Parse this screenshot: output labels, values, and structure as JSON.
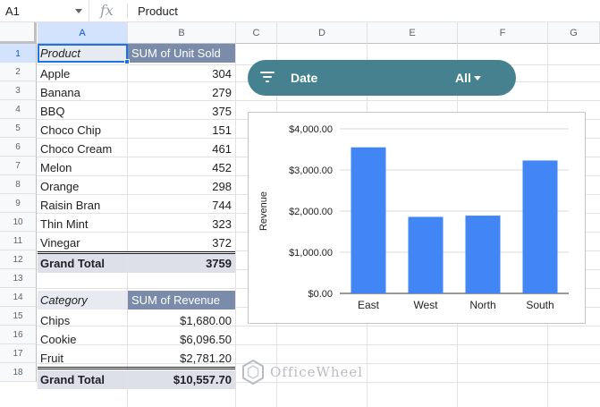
{
  "formula_bar": {
    "name_box": "A1",
    "fx": "fx",
    "content": "Product"
  },
  "columns": [
    "A",
    "B",
    "C",
    "D",
    "E",
    "F",
    "G"
  ],
  "rows": [
    "1",
    "2",
    "3",
    "4",
    "5",
    "6",
    "7",
    "8",
    "9",
    "10",
    "11",
    "12",
    "13",
    "14",
    "15",
    "16",
    "17",
    "18"
  ],
  "pivot1": {
    "header_a": "Product",
    "header_b": "SUM of Unit Sold",
    "rows": [
      {
        "label": "Apple",
        "value": "304"
      },
      {
        "label": "Banana",
        "value": "279"
      },
      {
        "label": "BBQ",
        "value": "375"
      },
      {
        "label": "Choco Chip",
        "value": "151"
      },
      {
        "label": "Choco Cream",
        "value": "461"
      },
      {
        "label": "Melon",
        "value": "452"
      },
      {
        "label": "Orange",
        "value": "298"
      },
      {
        "label": "Raisin Bran",
        "value": "744"
      },
      {
        "label": "Thin Mint",
        "value": "323"
      },
      {
        "label": "Vinegar",
        "value": "372"
      }
    ],
    "total_label": "Grand Total",
    "total_value": "3759"
  },
  "pivot2": {
    "header_a": "Category",
    "header_b": "SUM of Revenue",
    "rows": [
      {
        "label": "Chips",
        "value": "$1,680.00"
      },
      {
        "label": "Cookie",
        "value": "$6,096.50"
      },
      {
        "label": "Fruit",
        "value": "$2,781.20"
      }
    ],
    "total_label": "Grand Total",
    "total_value": "$10,557.70"
  },
  "filter": {
    "label": "Date",
    "value": "All",
    "icon": "filter-icon"
  },
  "chart_data": {
    "type": "bar",
    "categories": [
      "East",
      "West",
      "North",
      "South"
    ],
    "values": [
      3550,
      1860,
      1890,
      3230
    ],
    "title": "",
    "xlabel": "",
    "ylabel": "Revenue",
    "ylim": [
      0,
      4000
    ],
    "yticks": [
      "$0.00",
      "$1,000.00",
      "$2,000.00",
      "$3,000.00",
      "$4,000.00"
    ],
    "grid": true,
    "color": "#4285f4"
  },
  "watermark": "OfficeWheel",
  "colors": {
    "chip": "#45818e",
    "pivot_header": "#7b8caa",
    "total_row": "#dde0e8",
    "selection": "#1a73e8"
  }
}
